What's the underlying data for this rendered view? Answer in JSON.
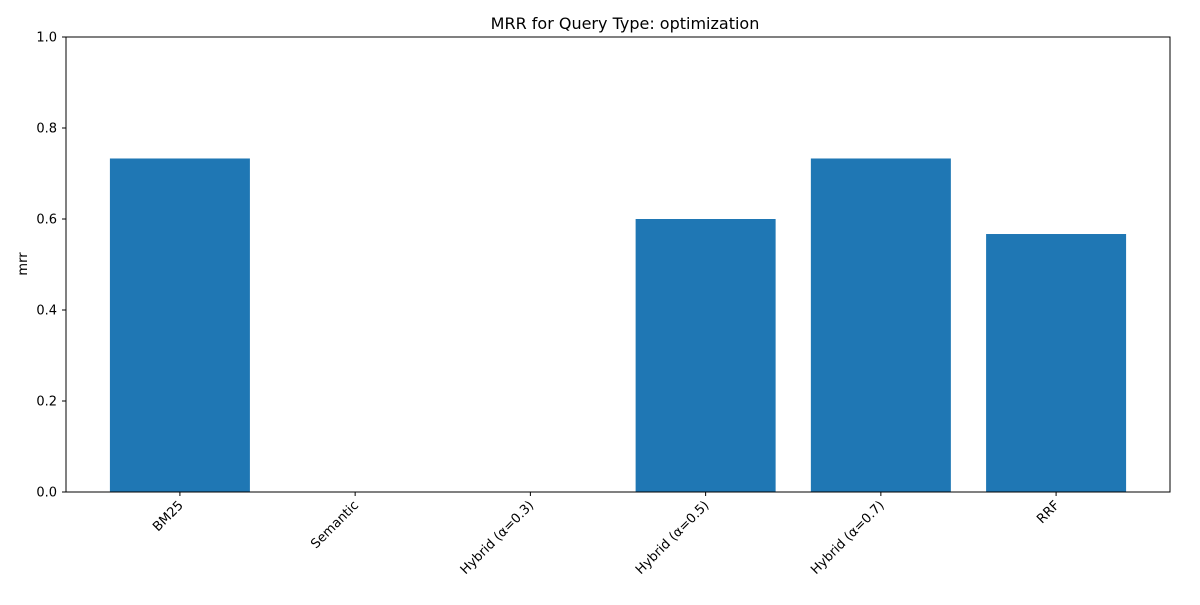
{
  "chart_data": {
    "type": "bar",
    "title": "MRR for Query Type: optimization",
    "xlabel": "",
    "ylabel": "mrr",
    "categories": [
      "BM25",
      "Semantic",
      "Hybrid (α=0.3)",
      "Hybrid (α=0.5)",
      "Hybrid (α=0.7)",
      "RRF"
    ],
    "values": [
      0.733,
      0.0,
      0.0,
      0.6,
      0.733,
      0.567
    ],
    "ylim": [
      0,
      1.0
    ],
    "yticks": [
      "0.0",
      "0.2",
      "0.4",
      "0.6",
      "0.8",
      "1.0"
    ],
    "grid": false,
    "bar_color": "#1f77b4",
    "xtick_rotation": "45 degrees"
  }
}
